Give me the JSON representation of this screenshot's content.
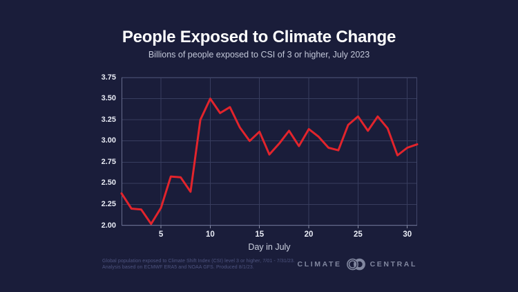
{
  "page": {
    "background": "#1a1d3a"
  },
  "header": {
    "title": "People Exposed to Climate Change",
    "subtitle": "Billions of people exposed to CSI of 3 or higher, July 2023"
  },
  "chart_data": {
    "type": "line",
    "title": "People Exposed to Climate Change",
    "subtitle": "Billions of people exposed to CSI of 3 or higher, July 2023",
    "xlabel": "Day in July",
    "ylabel": "",
    "series_name": "Billions of people exposed to CSI of 3 or higher",
    "x": [
      1,
      2,
      3,
      4,
      5,
      6,
      7,
      8,
      9,
      10,
      11,
      12,
      13,
      14,
      15,
      16,
      17,
      18,
      19,
      20,
      21,
      22,
      23,
      24,
      25,
      26,
      27,
      28,
      29,
      30,
      31
    ],
    "values": [
      2.38,
      2.2,
      2.19,
      2.02,
      2.21,
      2.58,
      2.57,
      2.4,
      3.25,
      3.5,
      3.33,
      3.4,
      3.16,
      3.0,
      3.11,
      2.84,
      2.97,
      3.12,
      2.94,
      3.14,
      3.05,
      2.92,
      2.89,
      3.19,
      3.29,
      3.12,
      3.29,
      3.15,
      2.83,
      2.92,
      2.96
    ],
    "xlim": [
      1,
      31
    ],
    "ylim": [
      2.0,
      3.75
    ],
    "xticks": [
      5,
      10,
      15,
      20,
      25,
      30
    ],
    "ytick_values": [
      2.0,
      2.25,
      2.5,
      2.75,
      3.0,
      3.25,
      3.5,
      3.75
    ],
    "ytick_labels": [
      "2.00",
      "2.25",
      "2.50",
      "2.75",
      "3.00",
      "3.25",
      "3.50",
      "3.75"
    ],
    "grid": true,
    "legend": "none",
    "line_color": "#e2242c",
    "grid_color": "#383d5f",
    "axis_color": "#676d8d",
    "background_color": "#1a1d3a"
  },
  "footer": {
    "note_line1": "Global population exposed to Climate Shift Index (CSI) level 3 or higher, 7/01 - 7/31/23.",
    "note_line2": "Analysis based on ECMWF ERA5 and NOAA GFS. Produced 8/1/23.",
    "logo": {
      "left": "CLIMATE",
      "right": "CENTRAL"
    }
  }
}
